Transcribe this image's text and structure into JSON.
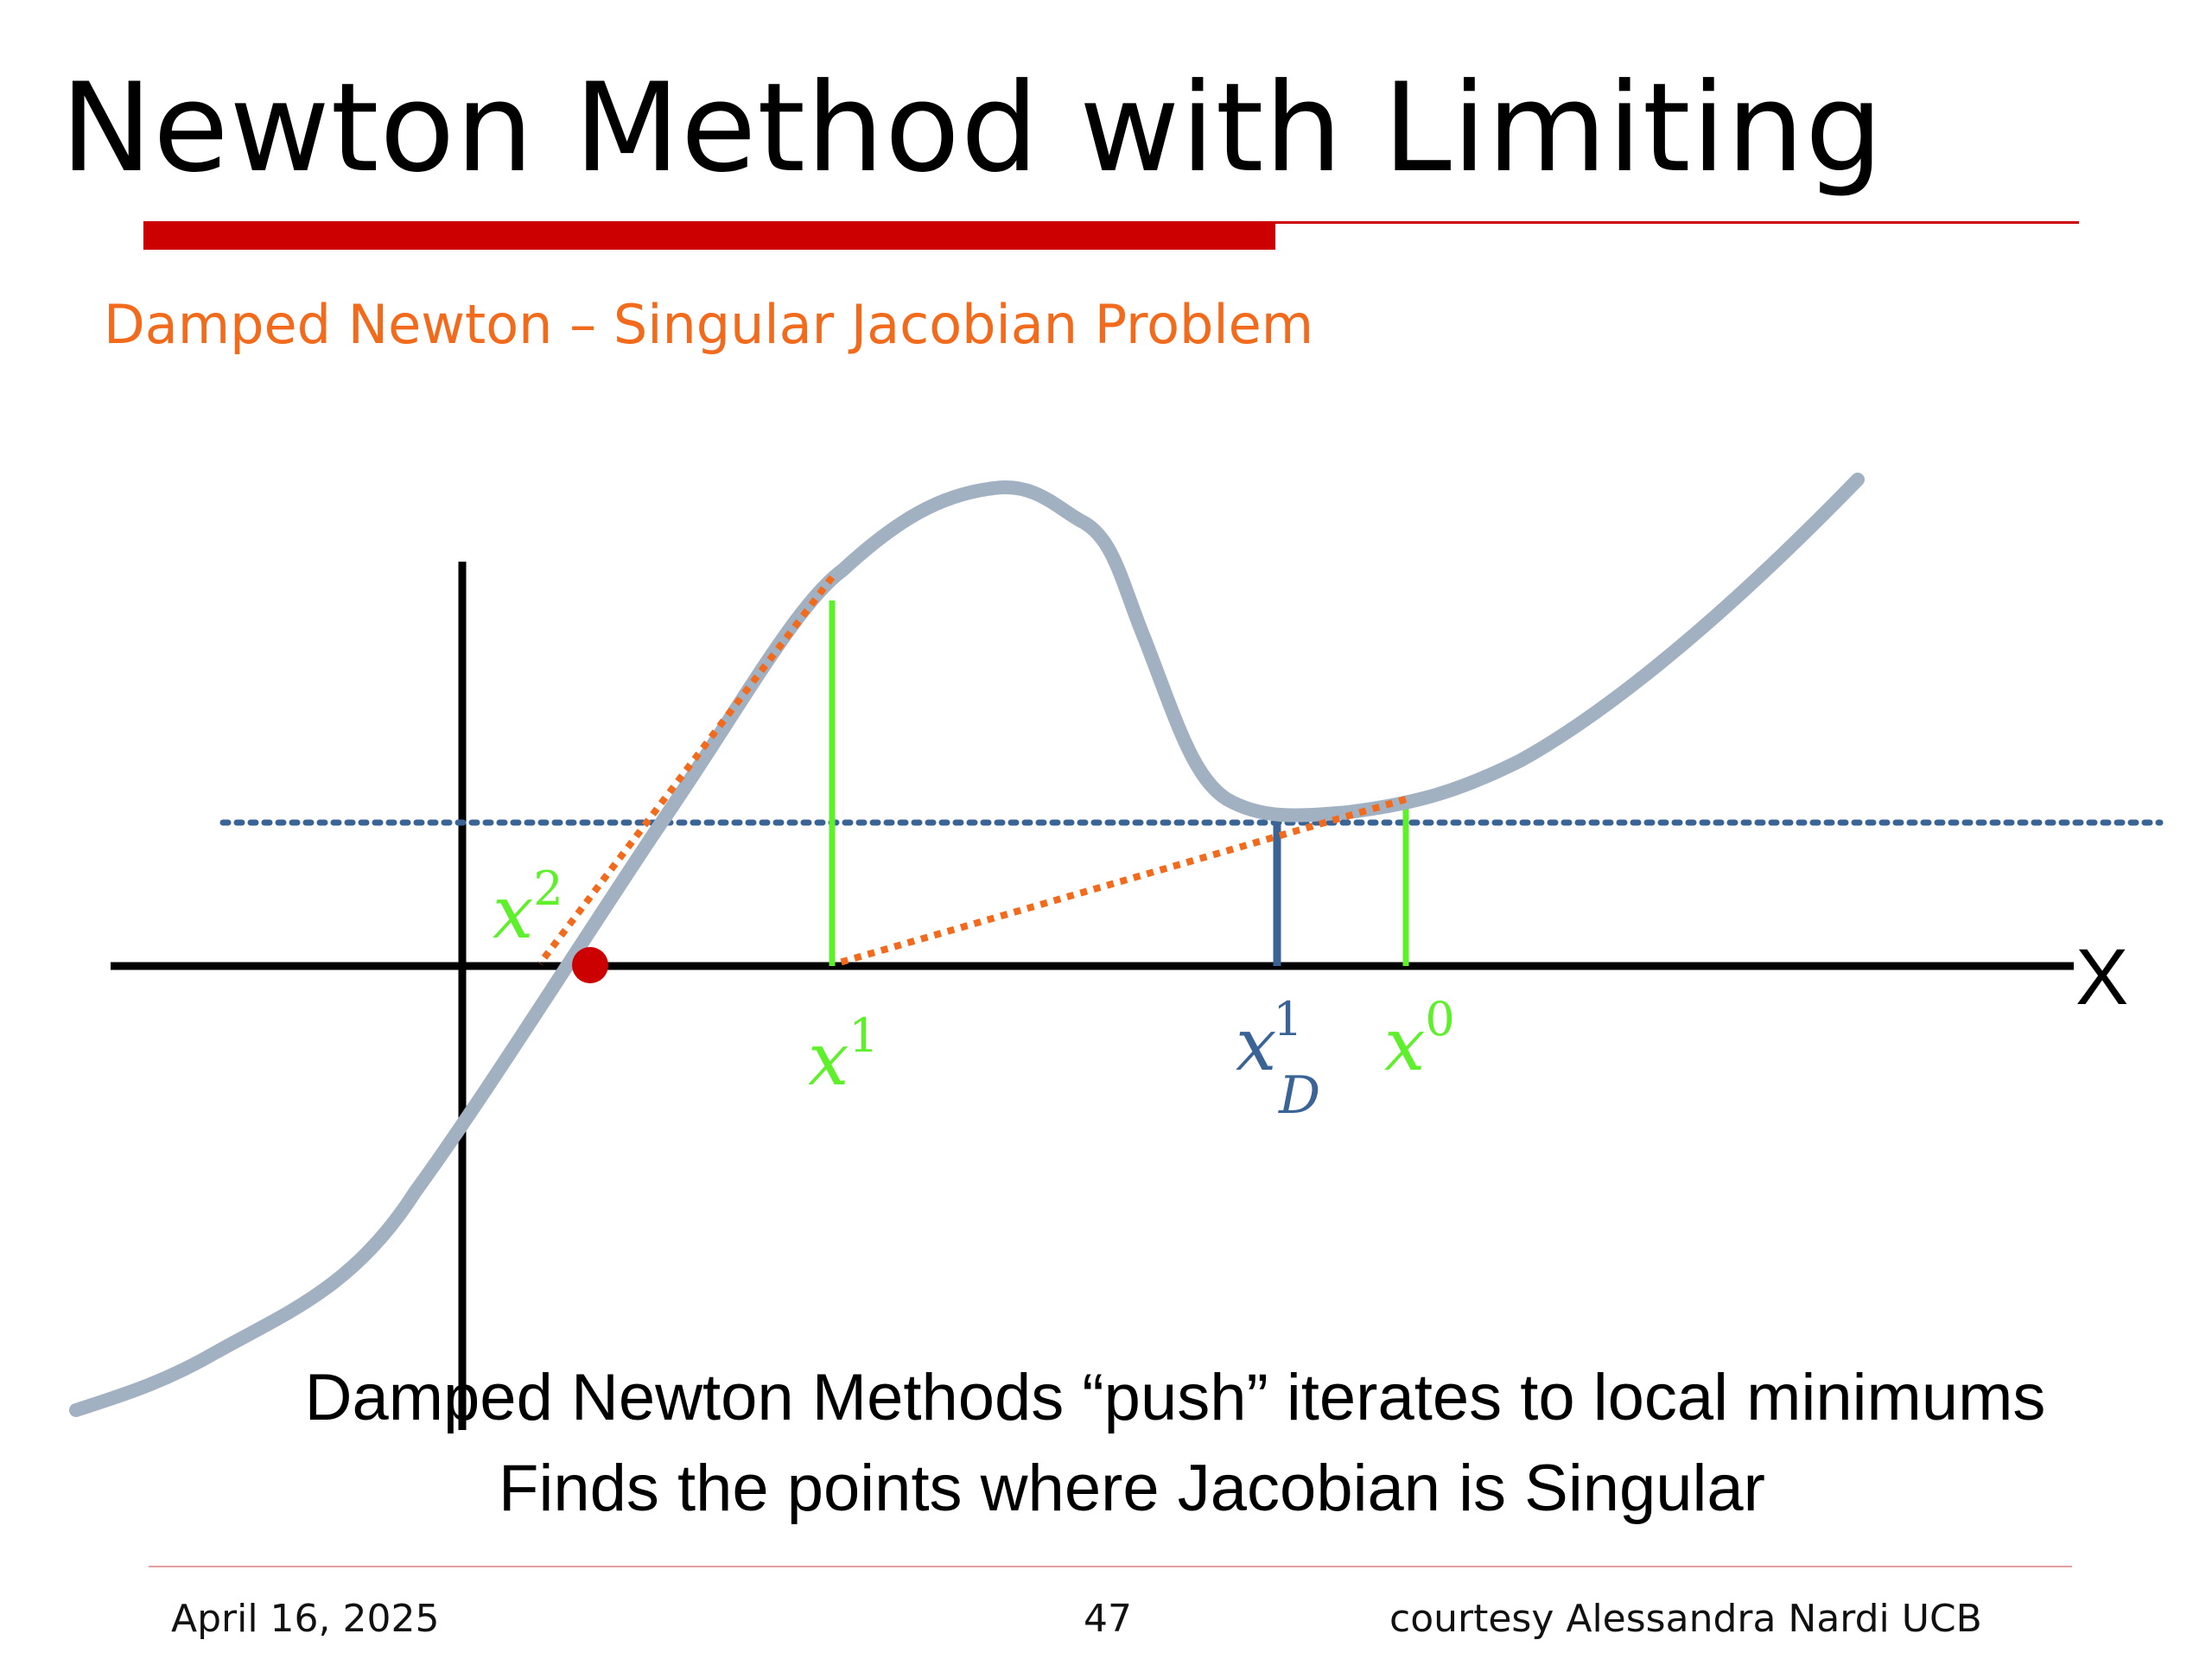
{
  "slide": {
    "title": "Newton Method with Limiting",
    "subtitle": "Damped Newton – Singular Jacobian Problem"
  },
  "diagram": {
    "axis_label": "X",
    "labels": {
      "x2_base": "x",
      "x2_sup": "2",
      "x1_base": "x",
      "x1_sup": "1",
      "xD1_base": "x",
      "xD1_sup": "1",
      "xD1_sub": "D",
      "x0_base": "x",
      "x0_sup": "0"
    },
    "colors": {
      "curve": "#a2b1c2",
      "axes": "#000000",
      "green_marks": "#5ef02a",
      "blue_marks": "#3a6496",
      "tangent_dotted": "#f26b1d",
      "root_dot": "#cc0000"
    }
  },
  "caption": {
    "line1": "Damped Newton Methods “push” iterates to local minimums",
    "line2": "Finds the points where Jacobian is Singular"
  },
  "footer": {
    "date": "April 16, 2025",
    "page": "47",
    "credit": "courtesy Alessandra Nardi UCB"
  }
}
